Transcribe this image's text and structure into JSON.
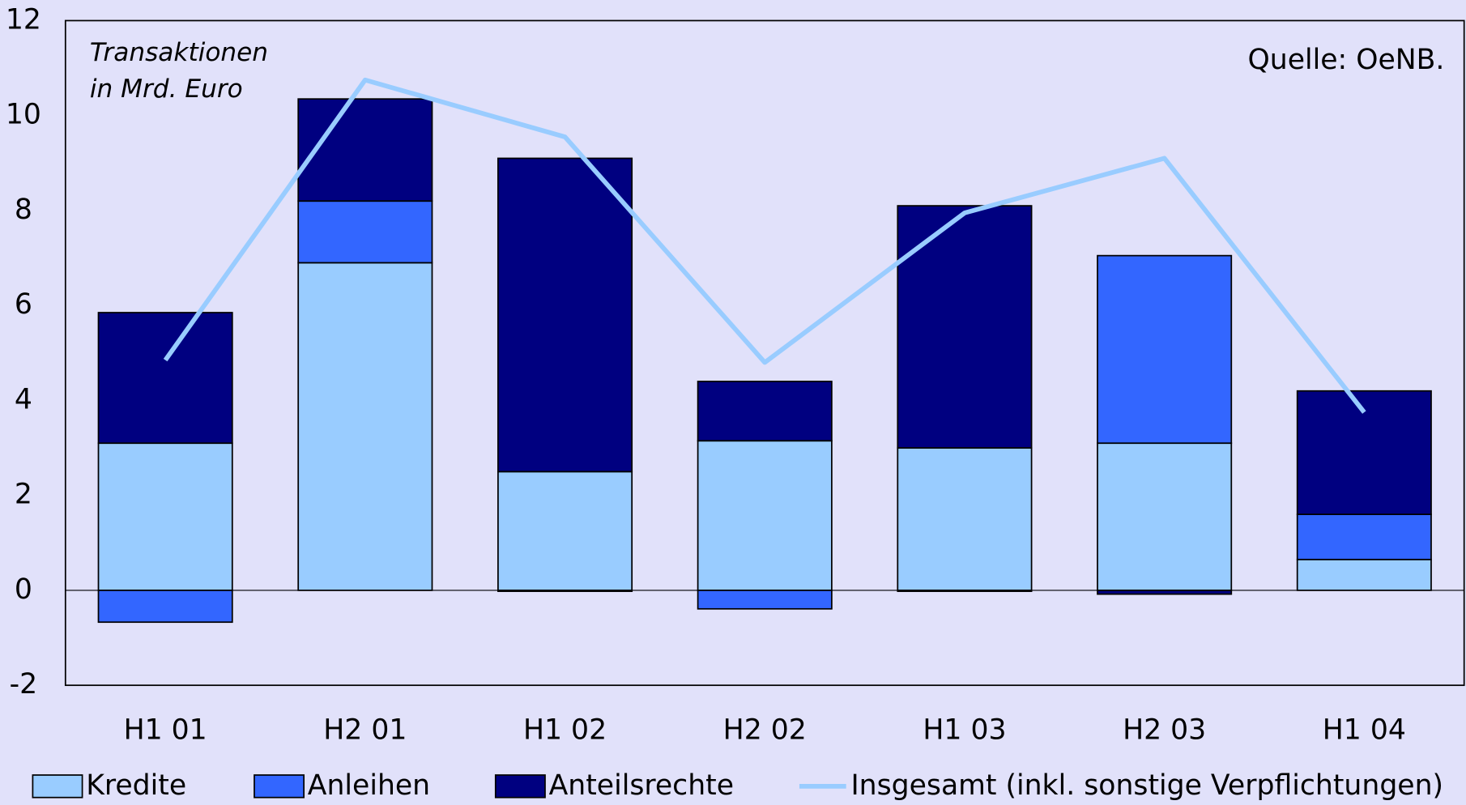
{
  "chart_data": {
    "type": "bar",
    "stacked": true,
    "annotation": [
      "Transaktionen",
      "in Mrd. Euro"
    ],
    "source": "Quelle: OeNB.",
    "categories": [
      "H1 01",
      "H2 01",
      "H1 02",
      "H2 02",
      "H1 03",
      "H2 03",
      "H1 04"
    ],
    "series": [
      {
        "name": "Kredite",
        "color": "#99ccff",
        "values": [
          3.1,
          6.9,
          2.5,
          3.15,
          3.0,
          3.1,
          0.65
        ]
      },
      {
        "name": "Anleihen",
        "color": "#3366ff",
        "values": [
          -0.67,
          1.3,
          -0.02,
          -0.39,
          -0.02,
          3.95,
          0.95
        ]
      },
      {
        "name": "Anteilsrechte",
        "color": "#000080",
        "values": [
          2.75,
          2.15,
          6.6,
          1.25,
          5.1,
          -0.08,
          2.6
        ]
      },
      {
        "name": "Insgesamt (inkl. sonstige Verpflichtungen)",
        "color": "#99ccff",
        "type": "line",
        "values": [
          4.85,
          10.75,
          9.55,
          4.8,
          7.95,
          9.1,
          3.75
        ]
      }
    ],
    "ylim": [
      -2,
      12
    ],
    "yticks": [
      -2,
      0,
      2,
      4,
      6,
      8,
      10,
      12
    ],
    "grid": false
  }
}
